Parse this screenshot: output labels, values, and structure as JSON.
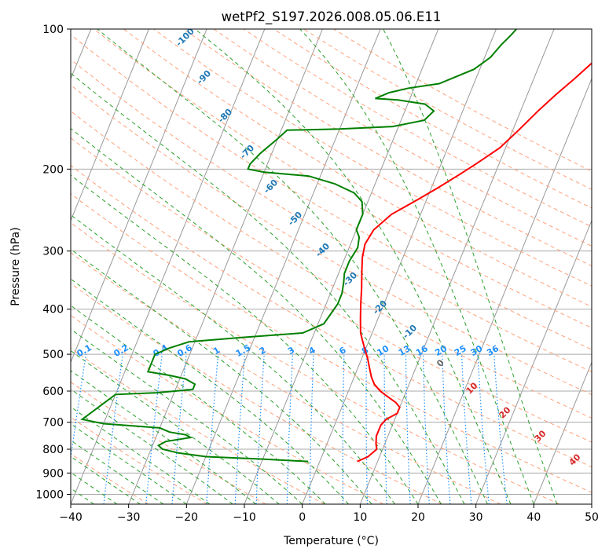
{
  "chart_data": {
    "type": "line",
    "title": "wetPf2_S197.2026.008.05.06.E11",
    "xlabel": "Temperature (°C)",
    "ylabel": "Pressure (hPa)",
    "xlim": [
      -40,
      50
    ],
    "ylim": [
      1050,
      100
    ],
    "y_scale": "log",
    "x_ticks": [
      "−40",
      "−30",
      "−20",
      "−10",
      "0",
      "10",
      "20",
      "30",
      "40",
      "50"
    ],
    "y_ticks": [
      "100",
      "200",
      "300",
      "400",
      "500",
      "600",
      "700",
      "800",
      "900",
      "1000"
    ],
    "grid": true,
    "colors": {
      "temperature": "#ff0000",
      "dewpoint": "#008000",
      "isotherm": "#999999",
      "dry_adiabat": "#ffa07a",
      "moist_adiabat": "#2ca02c",
      "mixing_ratio": "#1e90ff",
      "dry_label": "#1f77b4",
      "moist_label": "#d62728"
    },
    "series": [
      {
        "name": "",
        "key": "temperature",
        "points": [
          [
            6.5,
            850
          ],
          [
            8,
            830
          ],
          [
            9,
            800
          ],
          [
            8.5,
            780
          ],
          [
            8,
            750
          ],
          [
            8,
            710
          ],
          [
            8.5,
            690
          ],
          [
            10,
            670
          ],
          [
            10,
            650
          ],
          [
            9,
            635
          ],
          [
            7,
            615
          ],
          [
            5.5,
            600
          ],
          [
            4,
            580
          ],
          [
            3,
            560
          ],
          [
            2,
            535
          ],
          [
            1,
            510
          ],
          [
            0,
            490
          ],
          [
            -1,
            470
          ],
          [
            -2,
            450
          ],
          [
            -3,
            420
          ],
          [
            -4,
            390
          ],
          [
            -5,
            360
          ],
          [
            -6,
            335
          ],
          [
            -7,
            310
          ],
          [
            -7.5,
            290
          ],
          [
            -7,
            270
          ],
          [
            -5,
            250
          ],
          [
            -2,
            235
          ],
          [
            1,
            220
          ],
          [
            4,
            205
          ],
          [
            6,
            195
          ],
          [
            9,
            180
          ],
          [
            11,
            165
          ],
          [
            13,
            150
          ],
          [
            15,
            138
          ],
          [
            17,
            128
          ],
          [
            19,
            118
          ],
          [
            21,
            110
          ],
          [
            23,
            104
          ],
          [
            24,
            100
          ]
        ]
      },
      {
        "name": "",
        "key": "dewpoint",
        "points": [
          [
            -2,
            850
          ],
          [
            -10,
            840
          ],
          [
            -20,
            830
          ],
          [
            -25,
            815
          ],
          [
            -28,
            800
          ],
          [
            -29,
            785
          ],
          [
            -28,
            770
          ],
          [
            -24,
            755
          ],
          [
            -25,
            745
          ],
          [
            -28,
            735
          ],
          [
            -30,
            720
          ],
          [
            -40,
            705
          ],
          [
            -44,
            690
          ],
          [
            -40,
            610
          ],
          [
            -33,
            605
          ],
          [
            -27,
            595
          ],
          [
            -27,
            580
          ],
          [
            -29,
            565
          ],
          [
            -32,
            555
          ],
          [
            -36,
            545
          ],
          [
            -36,
            530
          ],
          [
            -36,
            515
          ],
          [
            -36,
            500
          ],
          [
            -34,
            485
          ],
          [
            -31,
            470
          ],
          [
            -22,
            460
          ],
          [
            -12,
            450
          ],
          [
            -9,
            430
          ],
          [
            -8.5,
            410
          ],
          [
            -8,
            390
          ],
          [
            -8,
            370
          ],
          [
            -8.5,
            350
          ],
          [
            -9,
            335
          ],
          [
            -9,
            315
          ],
          [
            -8.5,
            295
          ],
          [
            -9,
            280
          ],
          [
            -10,
            270
          ],
          [
            -10,
            250
          ],
          [
            -11,
            235
          ],
          [
            -13,
            225
          ],
          [
            -17,
            215
          ],
          [
            -22,
            207
          ],
          [
            -30,
            203
          ],
          [
            -33,
            200
          ],
          [
            -33,
            195
          ],
          [
            -32,
            185
          ],
          [
            -30,
            172
          ],
          [
            -29,
            165
          ],
          [
            -20,
            164
          ],
          [
            -11,
            162
          ],
          [
            -6,
            157
          ],
          [
            -5,
            150
          ],
          [
            -7,
            145
          ],
          [
            -12,
            142
          ],
          [
            -16,
            141
          ],
          [
            -14,
            137
          ],
          [
            -11,
            134
          ],
          [
            -6,
            131
          ],
          [
            -1,
            122
          ],
          [
            1,
            115
          ],
          [
            2,
            108
          ],
          [
            3,
            103
          ],
          [
            3.5,
            100
          ]
        ]
      }
    ],
    "dry_adiabat_labels": [
      "-100",
      "-90",
      "-80",
      "-70",
      "-60",
      "-50",
      "-40",
      "-30",
      "-20",
      "-10"
    ],
    "moist_adiabat_labels": [
      "0",
      "10",
      "20",
      "30",
      "40"
    ],
    "mixing_ratio_labels": [
      "0.1",
      "0.2",
      "0.4",
      "0.6",
      "1",
      "1.5",
      "2",
      "3",
      "4",
      "6",
      "8",
      "10",
      "13",
      "16",
      "20",
      "25",
      "30",
      "36"
    ]
  }
}
